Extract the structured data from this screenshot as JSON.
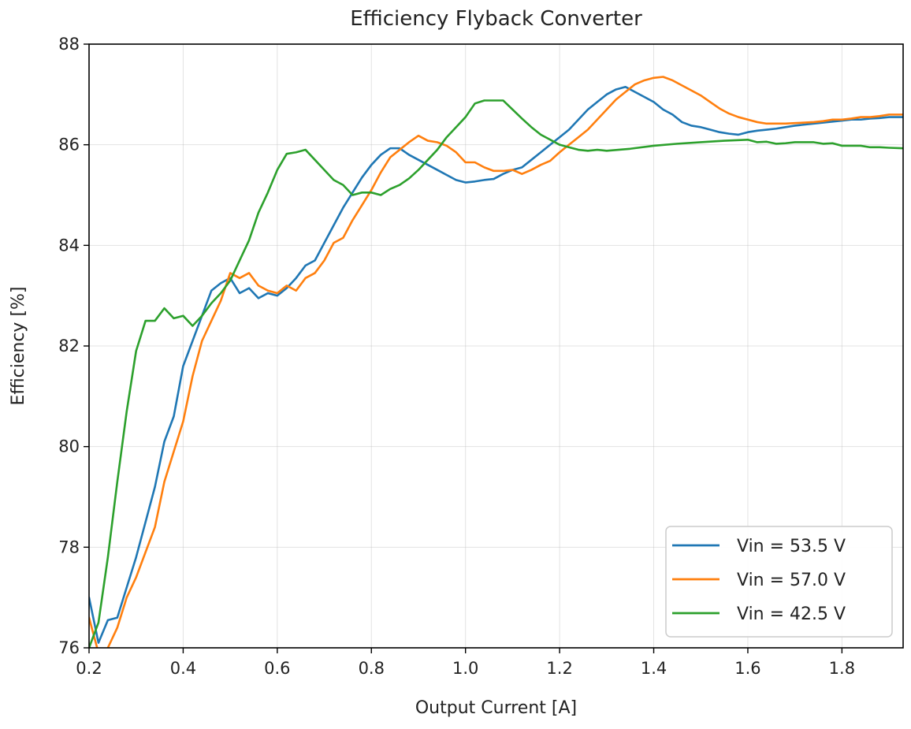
{
  "chart_data": {
    "type": "line",
    "title": "Efficiency Flyback Converter",
    "xlabel": "Output Current [A]",
    "ylabel": "Efficiency [%]",
    "xlim": [
      0.2,
      1.93
    ],
    "ylim": [
      76,
      88
    ],
    "xticks": [
      0.2,
      0.4,
      0.6,
      0.8,
      1.0,
      1.2,
      1.4,
      1.6,
      1.8
    ],
    "xtick_labels": [
      "0.2",
      "0.4",
      "0.6",
      "0.8",
      "1.0",
      "1.2",
      "1.4",
      "1.6",
      "1.8"
    ],
    "yticks": [
      76,
      78,
      80,
      82,
      84,
      86,
      88
    ],
    "ytick_labels": [
      "76",
      "78",
      "80",
      "82",
      "84",
      "86",
      "88"
    ],
    "grid": true,
    "legend_position": "bottom-right",
    "series": [
      {
        "name": "Vin = 53.5 V",
        "color": "#1f77b4",
        "x": [
          0.2,
          0.22,
          0.24,
          0.26,
          0.28,
          0.3,
          0.32,
          0.34,
          0.36,
          0.38,
          0.4,
          0.42,
          0.44,
          0.46,
          0.48,
          0.5,
          0.52,
          0.54,
          0.56,
          0.58,
          0.6,
          0.62,
          0.64,
          0.66,
          0.68,
          0.7,
          0.72,
          0.74,
          0.76,
          0.78,
          0.8,
          0.82,
          0.84,
          0.86,
          0.88,
          0.9,
          0.92,
          0.94,
          0.96,
          0.98,
          1.0,
          1.02,
          1.04,
          1.06,
          1.08,
          1.1,
          1.12,
          1.14,
          1.16,
          1.18,
          1.2,
          1.22,
          1.24,
          1.26,
          1.28,
          1.3,
          1.32,
          1.34,
          1.36,
          1.38,
          1.4,
          1.42,
          1.44,
          1.46,
          1.48,
          1.5,
          1.52,
          1.54,
          1.56,
          1.58,
          1.6,
          1.62,
          1.64,
          1.66,
          1.68,
          1.7,
          1.72,
          1.74,
          1.76,
          1.78,
          1.8,
          1.82,
          1.84,
          1.86,
          1.88,
          1.9,
          1.93
        ],
        "y": [
          77.0,
          76.1,
          76.55,
          76.6,
          77.2,
          77.8,
          78.5,
          79.2,
          80.1,
          80.6,
          81.6,
          82.1,
          82.6,
          83.1,
          83.25,
          83.35,
          83.05,
          83.15,
          82.95,
          83.05,
          83.0,
          83.15,
          83.35,
          83.6,
          83.7,
          84.05,
          84.4,
          84.75,
          85.05,
          85.35,
          85.6,
          85.8,
          85.93,
          85.93,
          85.8,
          85.7,
          85.6,
          85.5,
          85.4,
          85.3,
          85.25,
          85.27,
          85.3,
          85.32,
          85.42,
          85.5,
          85.55,
          85.7,
          85.85,
          86.0,
          86.15,
          86.3,
          86.5,
          86.7,
          86.85,
          87.0,
          87.1,
          87.15,
          87.05,
          86.95,
          86.85,
          86.7,
          86.6,
          86.45,
          86.38,
          86.35,
          86.3,
          86.25,
          86.22,
          86.2,
          86.25,
          86.28,
          86.3,
          86.32,
          86.35,
          86.38,
          86.4,
          86.42,
          86.44,
          86.46,
          86.48,
          86.5,
          86.5,
          86.52,
          86.53,
          86.55,
          86.55
        ]
      },
      {
        "name": "Vin = 57.0 V",
        "color": "#ff7f0e",
        "x": [
          0.2,
          0.22,
          0.24,
          0.26,
          0.28,
          0.3,
          0.32,
          0.34,
          0.36,
          0.38,
          0.4,
          0.42,
          0.44,
          0.46,
          0.48,
          0.5,
          0.52,
          0.54,
          0.56,
          0.58,
          0.6,
          0.62,
          0.64,
          0.66,
          0.68,
          0.7,
          0.72,
          0.74,
          0.76,
          0.78,
          0.8,
          0.82,
          0.84,
          0.86,
          0.88,
          0.9,
          0.92,
          0.94,
          0.96,
          0.98,
          1.0,
          1.02,
          1.04,
          1.06,
          1.08,
          1.1,
          1.12,
          1.14,
          1.16,
          1.18,
          1.2,
          1.22,
          1.24,
          1.26,
          1.28,
          1.3,
          1.32,
          1.34,
          1.36,
          1.38,
          1.4,
          1.42,
          1.44,
          1.46,
          1.48,
          1.5,
          1.52,
          1.54,
          1.56,
          1.58,
          1.6,
          1.62,
          1.64,
          1.66,
          1.68,
          1.7,
          1.72,
          1.74,
          1.76,
          1.78,
          1.8,
          1.82,
          1.84,
          1.86,
          1.88,
          1.9,
          1.93
        ],
        "y": [
          76.6,
          75.9,
          76.0,
          76.4,
          77.0,
          77.4,
          77.9,
          78.4,
          79.3,
          79.9,
          80.5,
          81.4,
          82.1,
          82.5,
          82.9,
          83.45,
          83.35,
          83.45,
          83.2,
          83.1,
          83.05,
          83.2,
          83.1,
          83.35,
          83.45,
          83.7,
          84.05,
          84.15,
          84.5,
          84.8,
          85.1,
          85.45,
          85.75,
          85.9,
          86.05,
          86.18,
          86.08,
          86.05,
          85.98,
          85.85,
          85.65,
          85.65,
          85.55,
          85.48,
          85.48,
          85.5,
          85.42,
          85.5,
          85.6,
          85.68,
          85.85,
          86.0,
          86.15,
          86.3,
          86.5,
          86.7,
          86.9,
          87.05,
          87.2,
          87.28,
          87.33,
          87.35,
          87.28,
          87.18,
          87.08,
          86.98,
          86.85,
          86.72,
          86.62,
          86.55,
          86.5,
          86.45,
          86.42,
          86.42,
          86.42,
          86.43,
          86.44,
          86.45,
          86.47,
          86.5,
          86.5,
          86.52,
          86.55,
          86.55,
          86.57,
          86.6,
          86.6
        ]
      },
      {
        "name": "Vin = 42.5 V",
        "color": "#2ca02c",
        "x": [
          0.2,
          0.22,
          0.24,
          0.26,
          0.28,
          0.3,
          0.32,
          0.34,
          0.36,
          0.38,
          0.4,
          0.42,
          0.44,
          0.46,
          0.48,
          0.5,
          0.52,
          0.54,
          0.56,
          0.58,
          0.6,
          0.62,
          0.64,
          0.66,
          0.68,
          0.7,
          0.72,
          0.74,
          0.76,
          0.78,
          0.8,
          0.82,
          0.84,
          0.86,
          0.88,
          0.9,
          0.92,
          0.94,
          0.96,
          0.98,
          1.0,
          1.02,
          1.04,
          1.06,
          1.08,
          1.1,
          1.12,
          1.14,
          1.16,
          1.18,
          1.2,
          1.22,
          1.24,
          1.26,
          1.28,
          1.3,
          1.35,
          1.4,
          1.45,
          1.5,
          1.55,
          1.6,
          1.62,
          1.64,
          1.66,
          1.68,
          1.7,
          1.72,
          1.74,
          1.76,
          1.78,
          1.8,
          1.82,
          1.84,
          1.86,
          1.88,
          1.9,
          1.93
        ],
        "y": [
          76.0,
          76.5,
          77.8,
          79.3,
          80.7,
          81.9,
          82.5,
          82.5,
          82.75,
          82.55,
          82.6,
          82.4,
          82.6,
          82.85,
          83.05,
          83.3,
          83.7,
          84.1,
          84.65,
          85.05,
          85.5,
          85.82,
          85.85,
          85.9,
          85.7,
          85.5,
          85.3,
          85.2,
          85.0,
          85.05,
          85.05,
          85.0,
          85.12,
          85.2,
          85.33,
          85.5,
          85.7,
          85.9,
          86.15,
          86.35,
          86.55,
          86.82,
          86.88,
          86.88,
          86.88,
          86.7,
          86.52,
          86.35,
          86.2,
          86.1,
          86.0,
          85.95,
          85.9,
          85.88,
          85.9,
          85.88,
          85.92,
          85.98,
          86.02,
          86.05,
          86.08,
          86.1,
          86.05,
          86.06,
          86.02,
          86.03,
          86.05,
          86.05,
          86.05,
          86.02,
          86.03,
          85.98,
          85.98,
          85.98,
          85.95,
          85.95,
          85.94,
          85.93
        ]
      }
    ]
  }
}
